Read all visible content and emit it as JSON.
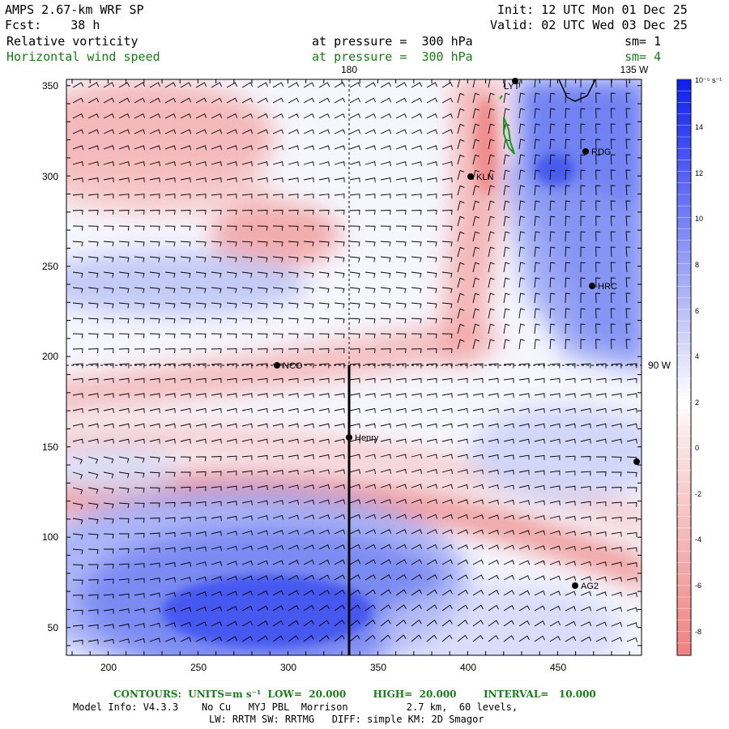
{
  "header": {
    "model": "AMPS 2.67-km WRF SP",
    "forecast": "Fcst:    38 h",
    "init": "Init: 12 UTC Mon 01 Dec 25",
    "valid": "Valid: 02 UTC Wed 03 Dec 25",
    "field1": "Relative vorticity",
    "field1_level": "at pressure =  300 hPa",
    "field1_sm": "sm= 1",
    "field2": "Horizontal wind speed",
    "field2_level": "at pressure =  300 hPa",
    "field2_sm": "sm= 4"
  },
  "map": {
    "meridian_180": "180",
    "meridian_135w": "135 W",
    "parallel_90w": "90 W",
    "x_ticks": [
      "200",
      "250",
      "300",
      "350",
      "400",
      "450"
    ],
    "y_ticks": [
      "50",
      "100",
      "150",
      "200",
      "250",
      "300",
      "350"
    ],
    "stations": [
      "LYT",
      "RDG",
      "KLN",
      "HRC",
      "NCO",
      "Henry",
      "AG2"
    ]
  },
  "colorbar": {
    "unit": "10⁻⁵ s⁻¹",
    "labels": [
      "14",
      "12",
      "10",
      "8",
      "6",
      "4",
      "2",
      "0",
      "-2",
      "-4",
      "-6",
      "-8"
    ],
    "colors": {
      "neg_max": "#f08080",
      "neg_min": "#fbe7e7",
      "zero": "#ffffff",
      "pos_min": "#e6e8fb",
      "pos_max": "#0c1ef0"
    }
  },
  "footer": {
    "contours": "CONTOURS:  UNITS=m s⁻¹  LOW=  20.000        HIGH=  20.000        INTERVAL=   10.000",
    "model_info": "Model Info: V4.3.3    No Cu   MYJ PBL  Morrison          2.7 km,  60 levels,",
    "physics": "LW: RRTM SW: RRTMG   DIFF: simple KM: 2D Smagor"
  }
}
